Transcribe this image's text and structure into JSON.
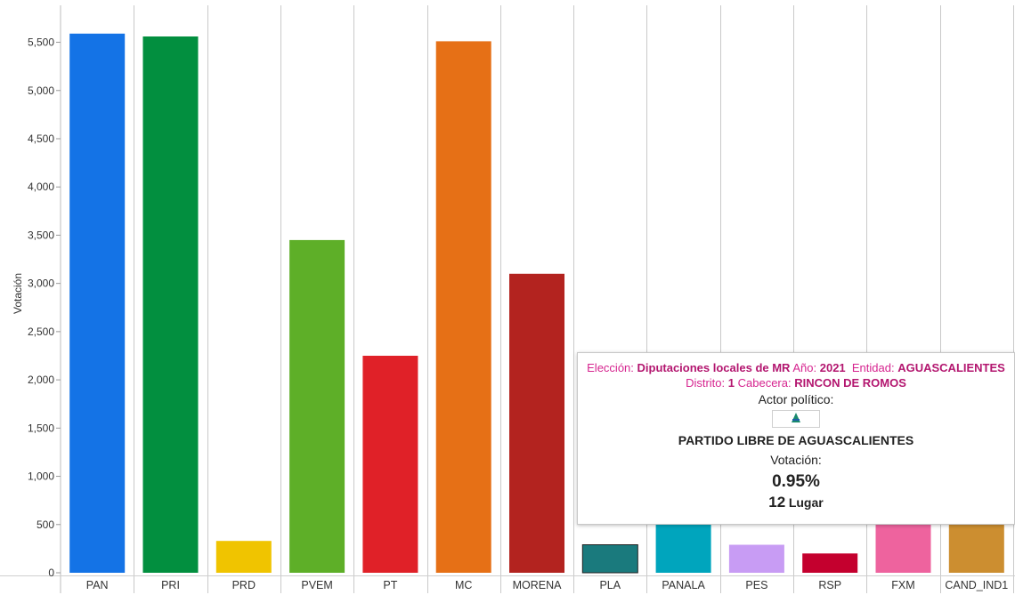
{
  "chart_data": {
    "type": "bar",
    "ylabel": "Votación",
    "xlabel": "",
    "ylim": [
      0,
      5800
    ],
    "yticks": [
      0,
      500,
      1000,
      1500,
      2000,
      2500,
      3000,
      3500,
      4000,
      4500,
      5000,
      5500
    ],
    "ytick_labels": [
      "0",
      "500",
      "1,000",
      "1,500",
      "2,000",
      "2,500",
      "3,000",
      "3,500",
      "4,000",
      "4,500",
      "5,000",
      "5,500"
    ],
    "grid": "vertical",
    "categories": [
      "PAN",
      "PRI",
      "PRD",
      "PVEM",
      "PT",
      "MC",
      "MORENA",
      "PLA",
      "PANALA",
      "PES",
      "RSP",
      "FXM",
      "CAND_IND1"
    ],
    "values": [
      5590,
      5560,
      330,
      3450,
      2250,
      5510,
      3100,
      290,
      520,
      290,
      200,
      500,
      500
    ],
    "colors": [
      "#1473e6",
      "#028f3f",
      "#f0c400",
      "#5eaf28",
      "#e02128",
      "#e67016",
      "#b3231f",
      "#1a7a7d",
      "#00a5bd",
      "#c89cf4",
      "#c4002e",
      "#ee639e",
      "#cc8e30"
    ],
    "outlined": [
      false,
      false,
      false,
      false,
      false,
      false,
      false,
      true,
      false,
      false,
      false,
      false,
      false
    ]
  },
  "tooltip": {
    "eleccion_label": "Elección:",
    "eleccion_value": "Diputaciones locales de MR",
    "anio_label": "Año:",
    "anio_value": "2021",
    "entidad_label": "Entidad:",
    "entidad_value": "AGUASCALIENTES",
    "distrito_label": "Distrito:",
    "distrito_value": "1",
    "cabecera_label": "Cabecera:",
    "cabecera_value": "RINCON DE ROMOS",
    "actor_label": "Actor político:",
    "party_name": "PARTIDO LIBRE DE AGUASCALIENTES",
    "votacion_label": "Votación:",
    "percent": "0.95%",
    "lugar_number": "12",
    "lugar_word": "Lugar",
    "logo_colors": [
      "#1a8a6e",
      "#1e5fa8"
    ]
  }
}
